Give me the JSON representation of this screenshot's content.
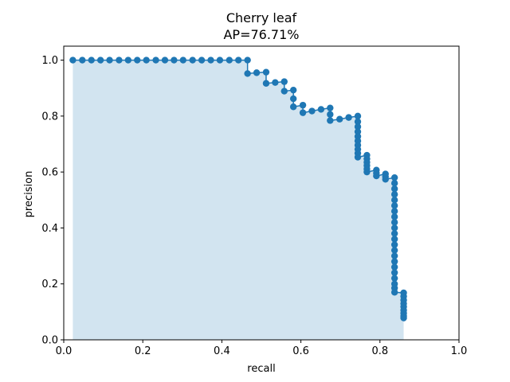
{
  "chart_data": {
    "type": "line",
    "title": "Cherry leaf",
    "subtitle": "AP=76.71%",
    "xlabel": "recall",
    "ylabel": "precision",
    "xlim": [
      0.0,
      1.0
    ],
    "ylim": [
      0.0,
      1.05
    ],
    "xticks": [
      "0.0",
      "0.2",
      "0.4",
      "0.6",
      "0.8",
      "1.0"
    ],
    "yticks": [
      "0.0",
      "0.2",
      "0.4",
      "0.6",
      "0.8",
      "1.0"
    ],
    "grid": false,
    "fill_under_curve": true,
    "line_color": "#1f77b4",
    "fill_color": "#1f77b4",
    "series": [
      {
        "points": [
          [
            0.023,
            1.0
          ],
          [
            0.047,
            1.0
          ],
          [
            0.07,
            1.0
          ],
          [
            0.093,
            1.0
          ],
          [
            0.116,
            1.0
          ],
          [
            0.14,
            1.0
          ],
          [
            0.163,
            1.0
          ],
          [
            0.186,
            1.0
          ],
          [
            0.209,
            1.0
          ],
          [
            0.233,
            1.0
          ],
          [
            0.256,
            1.0
          ],
          [
            0.279,
            1.0
          ],
          [
            0.302,
            1.0
          ],
          [
            0.326,
            1.0
          ],
          [
            0.349,
            1.0
          ],
          [
            0.372,
            1.0
          ],
          [
            0.395,
            1.0
          ],
          [
            0.419,
            1.0
          ],
          [
            0.442,
            1.0
          ],
          [
            0.465,
            1.0
          ],
          [
            0.465,
            0.952
          ],
          [
            0.488,
            0.955
          ],
          [
            0.512,
            0.957
          ],
          [
            0.512,
            0.917
          ],
          [
            0.535,
            0.92
          ],
          [
            0.558,
            0.923
          ],
          [
            0.558,
            0.889
          ],
          [
            0.581,
            0.893
          ],
          [
            0.581,
            0.862
          ],
          [
            0.581,
            0.833
          ],
          [
            0.605,
            0.839
          ],
          [
            0.605,
            0.812
          ],
          [
            0.628,
            0.818
          ],
          [
            0.651,
            0.824
          ],
          [
            0.674,
            0.829
          ],
          [
            0.674,
            0.806
          ],
          [
            0.674,
            0.784
          ],
          [
            0.698,
            0.789
          ],
          [
            0.721,
            0.795
          ],
          [
            0.744,
            0.8
          ],
          [
            0.744,
            0.78
          ],
          [
            0.744,
            0.762
          ],
          [
            0.744,
            0.744
          ],
          [
            0.744,
            0.727
          ],
          [
            0.744,
            0.711
          ],
          [
            0.744,
            0.696
          ],
          [
            0.744,
            0.681
          ],
          [
            0.744,
            0.667
          ],
          [
            0.744,
            0.653
          ],
          [
            0.767,
            0.66
          ],
          [
            0.767,
            0.647
          ],
          [
            0.767,
            0.635
          ],
          [
            0.767,
            0.623
          ],
          [
            0.767,
            0.611
          ],
          [
            0.767,
            0.6
          ],
          [
            0.791,
            0.607
          ],
          [
            0.791,
            0.596
          ],
          [
            0.791,
            0.586
          ],
          [
            0.814,
            0.593
          ],
          [
            0.814,
            0.583
          ],
          [
            0.814,
            0.574
          ],
          [
            0.837,
            0.58
          ],
          [
            0.837,
            0.56
          ],
          [
            0.837,
            0.54
          ],
          [
            0.837,
            0.52
          ],
          [
            0.837,
            0.5
          ],
          [
            0.837,
            0.48
          ],
          [
            0.837,
            0.46
          ],
          [
            0.837,
            0.44
          ],
          [
            0.837,
            0.42
          ],
          [
            0.837,
            0.4
          ],
          [
            0.837,
            0.38
          ],
          [
            0.837,
            0.36
          ],
          [
            0.837,
            0.34
          ],
          [
            0.837,
            0.32
          ],
          [
            0.837,
            0.3
          ],
          [
            0.837,
            0.28
          ],
          [
            0.837,
            0.26
          ],
          [
            0.837,
            0.24
          ],
          [
            0.837,
            0.22
          ],
          [
            0.837,
            0.2
          ],
          [
            0.837,
            0.185
          ],
          [
            0.837,
            0.17
          ],
          [
            0.86,
            0.168
          ],
          [
            0.86,
            0.155
          ],
          [
            0.86,
            0.142
          ],
          [
            0.86,
            0.13
          ],
          [
            0.86,
            0.118
          ],
          [
            0.86,
            0.106
          ],
          [
            0.86,
            0.095
          ],
          [
            0.86,
            0.085
          ],
          [
            0.86,
            0.078
          ]
        ]
      }
    ]
  }
}
